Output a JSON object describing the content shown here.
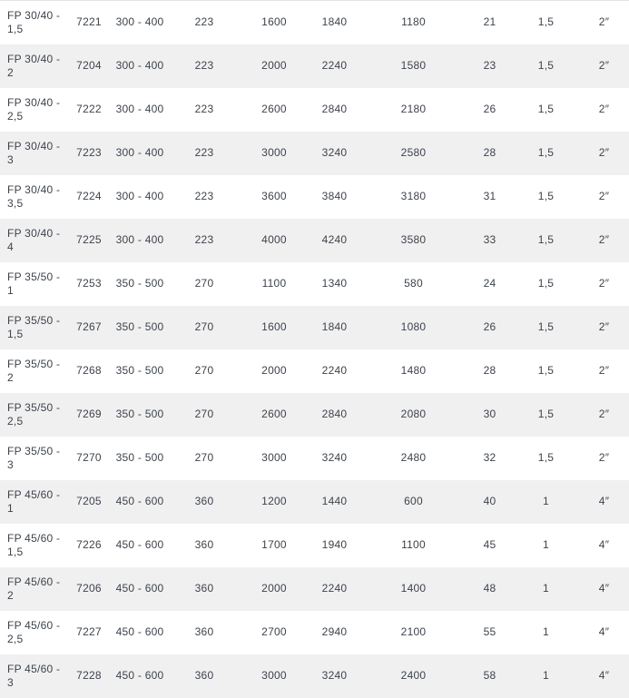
{
  "colors": {
    "row_stripe": "#f0f0f1",
    "text": "#3d434b",
    "top_border": "#e3e3e3"
  },
  "table": {
    "rows": [
      {
        "name": "FP 30/40 - 1,5",
        "cells": [
          "7221",
          "300 - 400",
          "223",
          "1600",
          "1840",
          "1180",
          "21",
          "1,5",
          "2″"
        ]
      },
      {
        "name": "FP 30/40 - 2",
        "cells": [
          "7204",
          "300 - 400",
          "223",
          "2000",
          "2240",
          "1580",
          "23",
          "1,5",
          "2″"
        ]
      },
      {
        "name": "FP 30/40 - 2,5",
        "cells": [
          "7222",
          "300 - 400",
          "223",
          "2600",
          "2840",
          "2180",
          "26",
          "1,5",
          "2″"
        ]
      },
      {
        "name": "FP 30/40 - 3",
        "cells": [
          "7223",
          "300 - 400",
          "223",
          "3000",
          "3240",
          "2580",
          "28",
          "1,5",
          "2″"
        ]
      },
      {
        "name": "FP 30/40 - 3,5",
        "cells": [
          "7224",
          "300 - 400",
          "223",
          "3600",
          "3840",
          "3180",
          "31",
          "1,5",
          "2″"
        ]
      },
      {
        "name": "FP 30/40 - 4",
        "cells": [
          "7225",
          "300 - 400",
          "223",
          "4000",
          "4240",
          "3580",
          "33",
          "1,5",
          "2″"
        ]
      },
      {
        "name": "FP 35/50 - 1",
        "cells": [
          "7253",
          "350 - 500",
          "270",
          "1100",
          "1340",
          "580",
          "24",
          "1,5",
          "2″"
        ]
      },
      {
        "name": "FP 35/50 - 1,5",
        "cells": [
          "7267",
          "350 - 500",
          "270",
          "1600",
          "1840",
          "1080",
          "26",
          "1,5",
          "2″"
        ]
      },
      {
        "name": "FP 35/50 - 2",
        "cells": [
          "7268",
          "350 - 500",
          "270",
          "2000",
          "2240",
          "1480",
          "28",
          "1,5",
          "2″"
        ]
      },
      {
        "name": "FP 35/50 - 2,5",
        "cells": [
          "7269",
          "350 - 500",
          "270",
          "2600",
          "2840",
          "2080",
          "30",
          "1,5",
          "2″"
        ]
      },
      {
        "name": "FP 35/50 - 3",
        "cells": [
          "7270",
          "350 - 500",
          "270",
          "3000",
          "3240",
          "2480",
          "32",
          "1,5",
          "2″"
        ]
      },
      {
        "name": "FP 45/60 - 1",
        "cells": [
          "7205",
          "450 - 600",
          "360",
          "1200",
          "1440",
          "600",
          "40",
          "1",
          "4″"
        ]
      },
      {
        "name": "FP 45/60 - 1,5",
        "cells": [
          "7226",
          "450 - 600",
          "360",
          "1700",
          "1940",
          "1100",
          "45",
          "1",
          "4″"
        ]
      },
      {
        "name": "FP 45/60 - 2",
        "cells": [
          "7206",
          "450 - 600",
          "360",
          "2000",
          "2240",
          "1400",
          "48",
          "1",
          "4″"
        ]
      },
      {
        "name": "FP 45/60 - 2,5",
        "cells": [
          "7227",
          "450 - 600",
          "360",
          "2700",
          "2940",
          "2100",
          "55",
          "1",
          "4″"
        ]
      },
      {
        "name": "FP 45/60 - 3",
        "cells": [
          "7228",
          "450 - 600",
          "360",
          "3000",
          "3240",
          "2400",
          "58",
          "1",
          "4″"
        ]
      }
    ]
  }
}
